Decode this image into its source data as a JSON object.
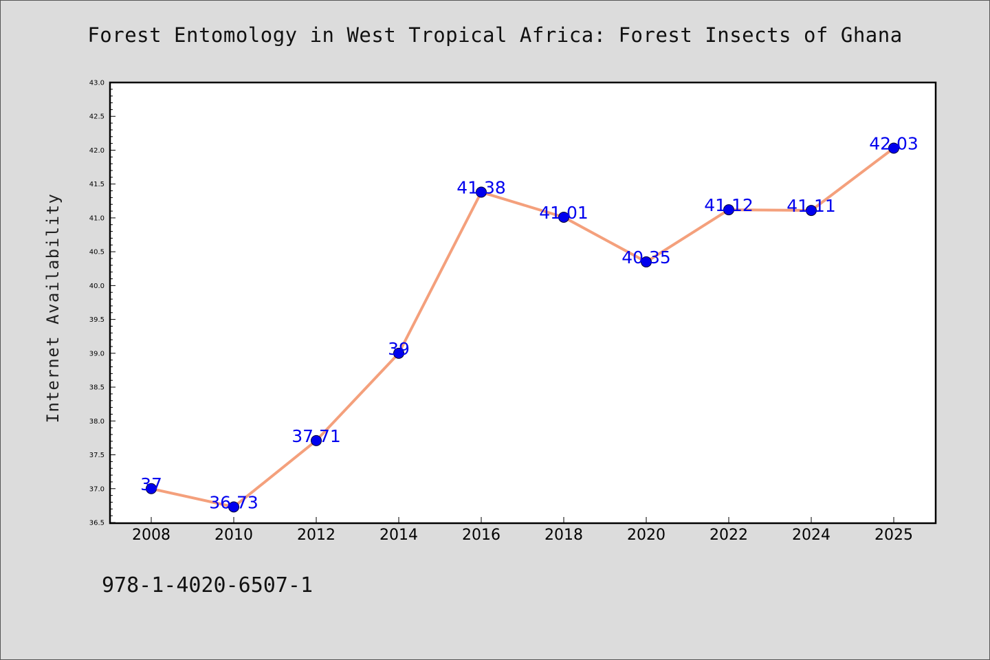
{
  "chart_data": {
    "type": "line",
    "title": "Forest Entomology in West Tropical Africa: Forest Insects of Ghana",
    "xlabel": "",
    "ylabel": "Internet Availability",
    "categories": [
      "2008",
      "2010",
      "2012",
      "2014",
      "2016",
      "2018",
      "2020",
      "2022",
      "2024",
      "2025"
    ],
    "series": [
      {
        "values": [
          37,
          36.73,
          37.71,
          39,
          41.38,
          41.01,
          40.35,
          41.12,
          41.11,
          42.03
        ],
        "labels": [
          "37",
          "36.73",
          "37.71",
          "39",
          "41.38",
          "41.01",
          "40.35",
          "41.12",
          "41.11",
          "42.03"
        ]
      }
    ],
    "ylim": [
      36.5,
      43.0
    ],
    "yticks": [
      "36.5",
      "37.0",
      "37.5",
      "38.0",
      "38.5",
      "39.0",
      "39.5",
      "40.0",
      "40.5",
      "41.0",
      "41.5",
      "42.0",
      "42.5",
      "43.0"
    ],
    "grid": false,
    "legend": "none",
    "colors": {
      "line": "#f4a07c",
      "marker": "#0000ee",
      "data_label": "#0000ee",
      "background": "#dcdcdc",
      "plot_background": "#ffffff"
    }
  },
  "footer": {
    "isbn": "978-1-4020-6507-1"
  }
}
